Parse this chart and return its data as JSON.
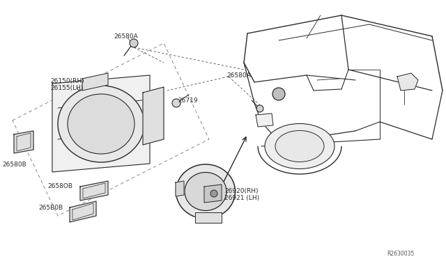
{
  "bg_color": "#ffffff",
  "diagram_code": "R2630035",
  "line_color": "#2a2a2a",
  "label_color": "#2a2a2a",
  "font_size": 6.5,
  "labels": {
    "26150RH": "26150(RH)",
    "26155LH": "26155(LH)",
    "26580A_top": "26580A",
    "26580A_mid": "26580A",
    "26719": "26719",
    "26580B_1": "26580B",
    "26580B_2": "2658OB",
    "26580B_3": "265B0B",
    "26920RH": "26920(RH)",
    "26921LH": "26921 (LH)"
  }
}
